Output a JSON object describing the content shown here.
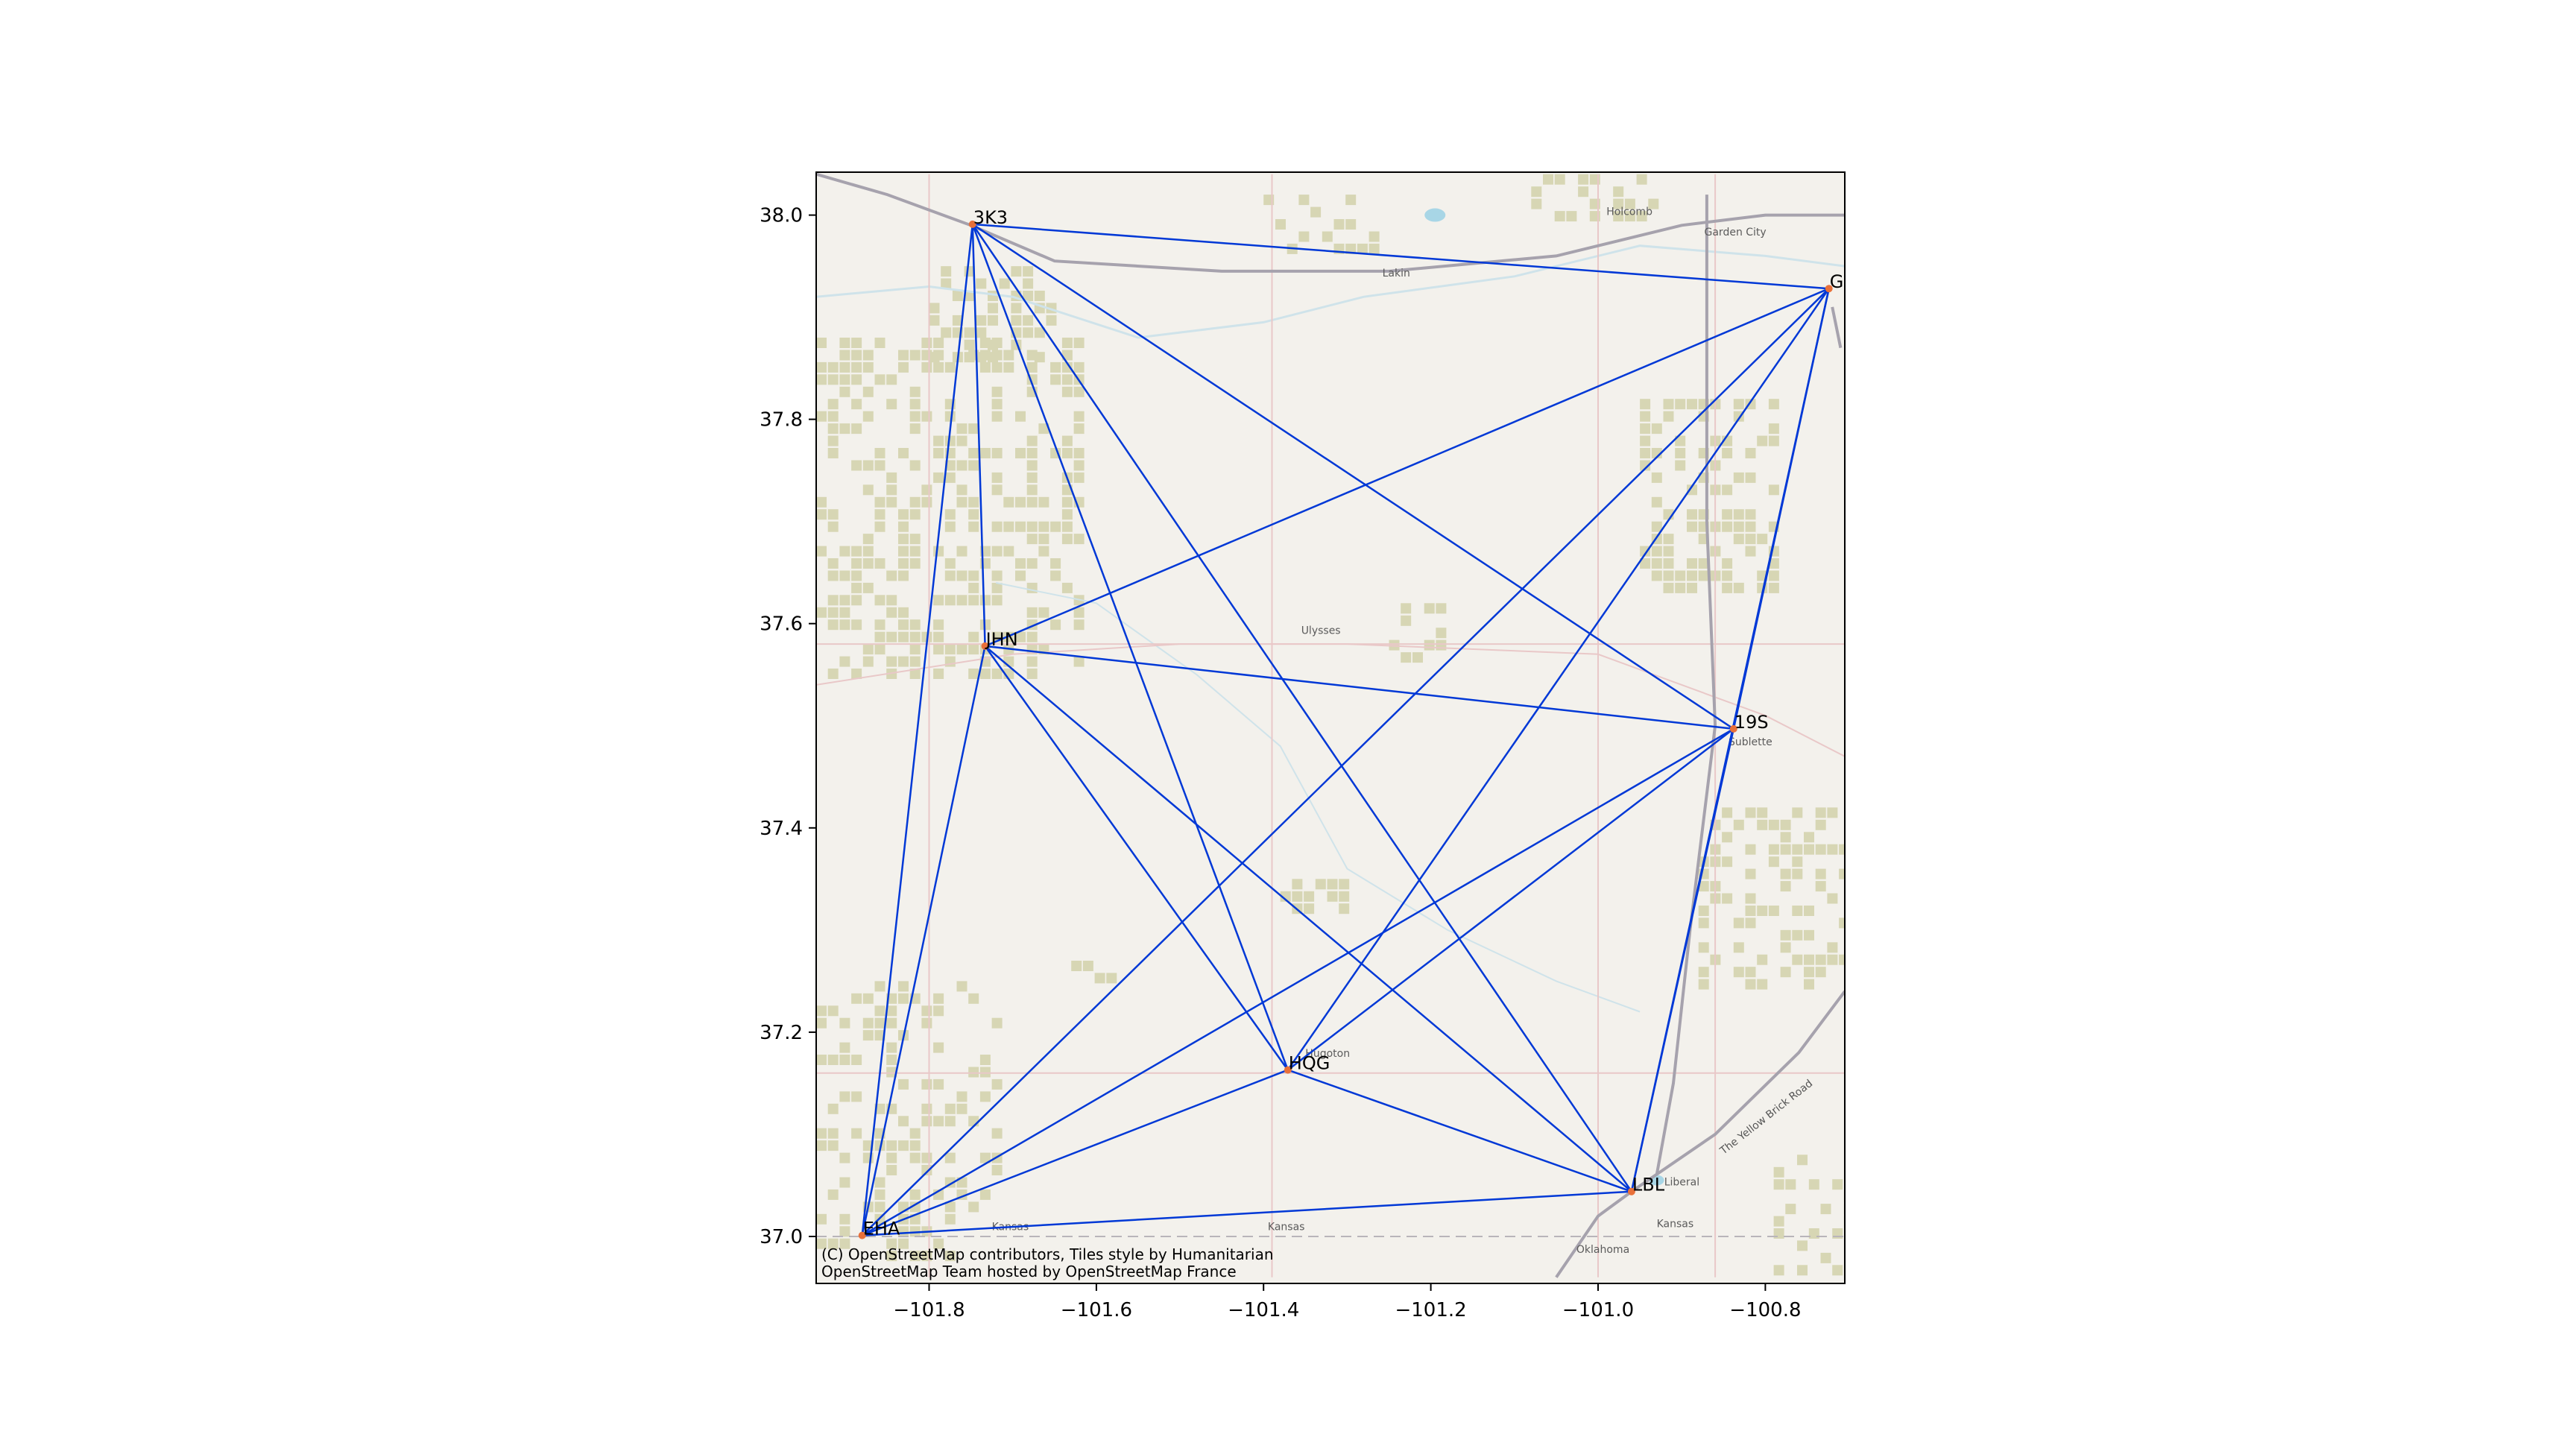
{
  "chart_data": {
    "type": "map",
    "xlabel": "",
    "ylabel": "",
    "xlim": [
      -101.935,
      -100.705
    ],
    "ylim": [
      36.954,
      38.042
    ],
    "xticks": [
      -101.8,
      -101.6,
      -101.4,
      -101.2,
      -101.0,
      -100.8
    ],
    "xtick_labels": [
      "−101.8",
      "−101.6",
      "−101.4",
      "−101.2",
      "−101.0",
      "−100.8"
    ],
    "yticks": [
      37.0,
      37.2,
      37.4,
      37.6,
      37.8,
      38.0
    ],
    "ytick_labels": [
      "37.0",
      "37.2",
      "37.4",
      "37.6",
      "37.8",
      "38.0"
    ],
    "line_color": "#0038d6",
    "marker_color": "#e8703a",
    "airports": [
      {
        "code": "3K3",
        "lon": -101.748,
        "lat": 37.991
      },
      {
        "code": "GCK",
        "lon": -100.724,
        "lat": 37.928
      },
      {
        "code": "JHN",
        "lon": -101.733,
        "lat": 37.578
      },
      {
        "code": "19S",
        "lon": -100.838,
        "lat": 37.497
      },
      {
        "code": "HQG",
        "lon": -101.371,
        "lat": 37.163
      },
      {
        "code": "LBL",
        "lon": -100.96,
        "lat": 37.044
      },
      {
        "code": "EHA",
        "lon": -101.88,
        "lat": 37.001
      }
    ],
    "connections": [
      [
        "3K3",
        "GCK"
      ],
      [
        "3K3",
        "JHN"
      ],
      [
        "3K3",
        "19S"
      ],
      [
        "3K3",
        "HQG"
      ],
      [
        "3K3",
        "LBL"
      ],
      [
        "3K3",
        "EHA"
      ],
      [
        "GCK",
        "JHN"
      ],
      [
        "GCK",
        "19S"
      ],
      [
        "GCK",
        "HQG"
      ],
      [
        "GCK",
        "LBL"
      ],
      [
        "GCK",
        "EHA"
      ],
      [
        "JHN",
        "19S"
      ],
      [
        "JHN",
        "HQG"
      ],
      [
        "JHN",
        "LBL"
      ],
      [
        "JHN",
        "EHA"
      ],
      [
        "19S",
        "HQG"
      ],
      [
        "19S",
        "LBL"
      ],
      [
        "19S",
        "EHA"
      ],
      [
        "HQG",
        "LBL"
      ],
      [
        "HQG",
        "EHA"
      ],
      [
        "LBL",
        "EHA"
      ]
    ]
  },
  "basemap": {
    "colors": {
      "land": "#f3f1ec",
      "farm": "#d7d6b4",
      "highway": "#a6a2ad",
      "road": "#e9c8c8",
      "water": "#a8d6e6",
      "river": "#cfe3ea",
      "border": "#b9b5ba"
    },
    "place_labels": [
      {
        "name": "Holcomb",
        "lon": -100.99,
        "lat": 38.0
      },
      {
        "name": "Garden City",
        "lon": -100.873,
        "lat": 37.98
      },
      {
        "name": "Lakin",
        "lon": -101.258,
        "lat": 37.94
      },
      {
        "name": "Ulysses",
        "lon": -101.355,
        "lat": 37.59
      },
      {
        "name": "Sublette",
        "lon": -100.844,
        "lat": 37.481
      },
      {
        "name": "Hugoton",
        "lon": -101.35,
        "lat": 37.176
      },
      {
        "name": "Liberal",
        "lon": -100.921,
        "lat": 37.05
      },
      {
        "name": "Kansas",
        "lon": -101.725,
        "lat": 37.006
      },
      {
        "name": "Kansas",
        "lon": -101.395,
        "lat": 37.006
      },
      {
        "name": "Kansas",
        "lon": -100.93,
        "lat": 37.009
      },
      {
        "name": "Oklahoma",
        "lon": -101.026,
        "lat": 36.984
      }
    ],
    "road_label": "The Yellow Brick Road"
  },
  "attribution": [
    "(C) OpenStreetMap contributors, Tiles style by Humanitarian",
    "OpenStreetMap Team hosted by OpenStreetMap France"
  ]
}
